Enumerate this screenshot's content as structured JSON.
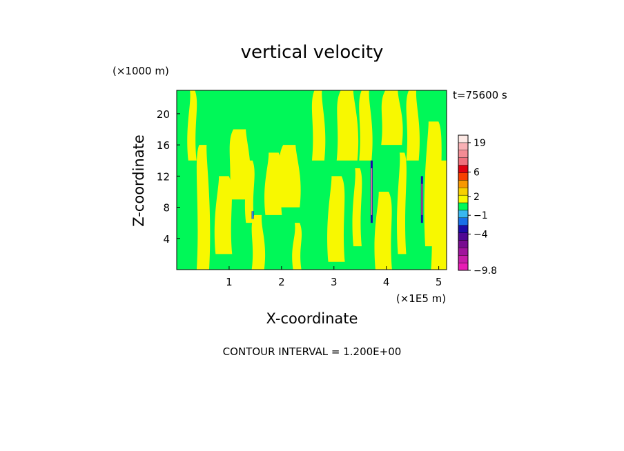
{
  "chart_data": {
    "type": "heatmap",
    "title": "vertical velocity",
    "xlabel": "X-coordinate",
    "ylabel": "Z-coordinate",
    "x_unit": "(×1E5 m)",
    "y_unit": "(×1000 m)",
    "time_label": "t=75600 s",
    "contour_interval_text": "CONTOUR INTERVAL = 1.200E+00",
    "xlim": [
      0,
      5.15
    ],
    "ylim": [
      0,
      23
    ],
    "x_ticks": [
      1,
      2,
      3,
      4,
      5
    ],
    "y_ticks": [
      4,
      8,
      12,
      16,
      20
    ],
    "colorbar": {
      "range": [
        -9.8,
        24
      ],
      "tick_labels": [
        "19",
        "6",
        "2",
        "−1",
        "−4",
        "−9.8"
      ],
      "tick_values": [
        19,
        6,
        2,
        -1,
        -4,
        -9.8
      ],
      "levels": [
        {
          "from": -9.8,
          "to": -8.6,
          "color": "#e81cb4"
        },
        {
          "from": -8.6,
          "to": -7.4,
          "color": "#c81ca8"
        },
        {
          "from": -7.4,
          "to": -6.2,
          "color": "#a0149c"
        },
        {
          "from": -6.2,
          "to": -5.0,
          "color": "#780c90"
        },
        {
          "from": -5.0,
          "to": -3.8,
          "color": "#500894"
        },
        {
          "from": -3.8,
          "to": -2.6,
          "color": "#1c0ca8"
        },
        {
          "from": -2.6,
          "to": -1.4,
          "color": "#1870e8"
        },
        {
          "from": -1.4,
          "to": -0.2,
          "color": "#38b8f0"
        },
        {
          "from": -0.2,
          "to": 1.0,
          "color": "#00f858"
        },
        {
          "from": 1.0,
          "to": 2.2,
          "color": "#f8f800"
        },
        {
          "from": 2.2,
          "to": 3.4,
          "color": "#f8d000"
        },
        {
          "from": 3.4,
          "to": 4.6,
          "color": "#f89800"
        },
        {
          "from": 4.6,
          "to": 5.8,
          "color": "#f84000"
        },
        {
          "from": 5.8,
          "to": 8.0,
          "color": "#e00010"
        },
        {
          "from": 8.0,
          "to": 11.5,
          "color": "#f0707c"
        },
        {
          "from": 11.5,
          "to": 15.0,
          "color": "#f48c94"
        },
        {
          "from": 15.0,
          "to": 19.0,
          "color": "#f8b0b4"
        },
        {
          "from": 19.0,
          "to": 24.0,
          "color": "#fce8e4"
        }
      ]
    },
    "field_colors": {
      "near_zero": "#00f858",
      "weak_updraft": "#f8f800"
    },
    "bands": [
      {
        "x": 0.3,
        "from": 14,
        "to": 23
      },
      {
        "x": 0.5,
        "from": 0,
        "to": 16
      },
      {
        "x": 0.9,
        "from": 2,
        "to": 12
      },
      {
        "x": 1.2,
        "from": 9,
        "to": 18
      },
      {
        "x": 1.4,
        "from": 6,
        "to": 14
      },
      {
        "x": 1.55,
        "from": 0,
        "to": 7
      },
      {
        "x": 1.85,
        "from": 7,
        "to": 15
      },
      {
        "x": 2.15,
        "from": 8,
        "to": 16
      },
      {
        "x": 2.3,
        "from": 0,
        "to": 6
      },
      {
        "x": 2.7,
        "from": 14,
        "to": 23
      },
      {
        "x": 3.05,
        "from": 1,
        "to": 12
      },
      {
        "x": 3.25,
        "from": 14,
        "to": 23
      },
      {
        "x": 3.45,
        "from": 3,
        "to": 13
      },
      {
        "x": 3.6,
        "from": 14,
        "to": 23
      },
      {
        "x": 3.95,
        "from": 0,
        "to": 10
      },
      {
        "x": 4.1,
        "from": 16,
        "to": 23
      },
      {
        "x": 4.3,
        "from": 2,
        "to": 15
      },
      {
        "x": 4.5,
        "from": 14,
        "to": 23
      },
      {
        "x": 4.9,
        "from": 3,
        "to": 19
      },
      {
        "x": 5.05,
        "from": 0,
        "to": 14
      }
    ],
    "cores": [
      {
        "x": 3.72,
        "from": 6,
        "to": 14,
        "peak": 12
      },
      {
        "x": 4.68,
        "from": 6,
        "to": 12,
        "peak": 9
      },
      {
        "x": 1.45,
        "from": 6.5,
        "to": 7.5,
        "peak": -1
      }
    ]
  }
}
